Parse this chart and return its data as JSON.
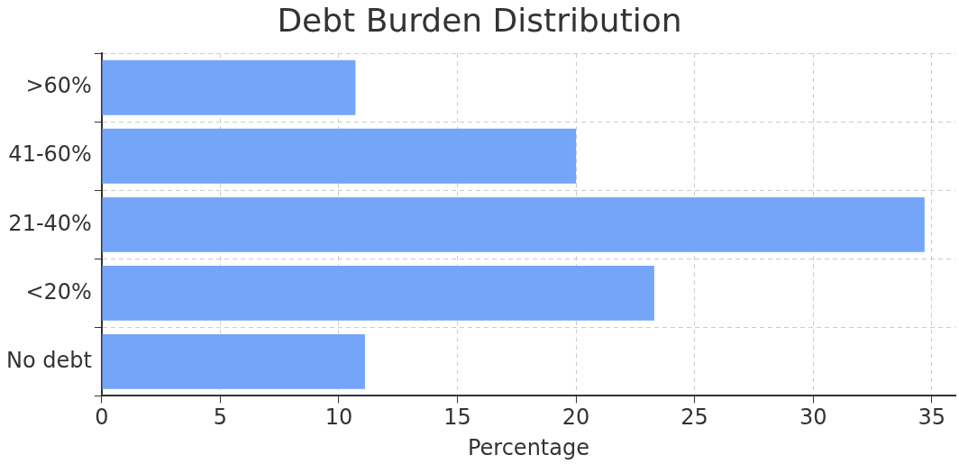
{
  "chart_data": {
    "type": "bar",
    "orientation": "horizontal",
    "title": "Debt Burden Distribution",
    "xlabel": "Percentage",
    "categories": [
      ">60%",
      "41-60%",
      "21-40%",
      "<20%",
      "No debt"
    ],
    "values": [
      10.7,
      20.0,
      34.7,
      23.3,
      11.1
    ],
    "color": "#74a5f9",
    "xlim": [
      0,
      36
    ],
    "xticks": [
      0,
      5,
      10,
      15,
      20,
      25,
      30,
      35
    ],
    "grid": true
  }
}
